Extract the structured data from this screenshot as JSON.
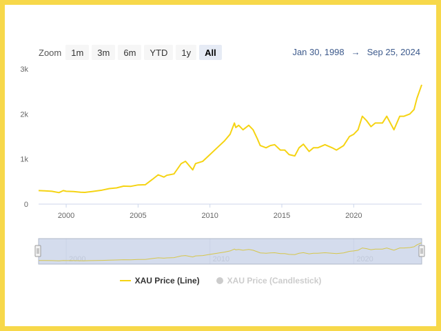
{
  "zoom": {
    "label": "Zoom",
    "buttons": [
      "1m",
      "3m",
      "6m",
      "YTD",
      "1y",
      "All"
    ],
    "active": "All"
  },
  "range": {
    "from": "Jan 30, 1998",
    "arrow": "→",
    "to": "Sep 25, 2024"
  },
  "legend": {
    "line": "XAU Price (Line)",
    "candlestick": "XAU Price (Candlestick)"
  },
  "colors": {
    "line": "#f5d312",
    "frame": "#f7d84a",
    "navigator_mask": "#cdd6ea"
  },
  "chart_data": {
    "type": "line",
    "xlabel": "",
    "ylabel": "",
    "x_range": [
      1998.08,
      2024.73
    ],
    "ylim": [
      0,
      3000
    ],
    "y_ticks": [
      0,
      1000,
      2000,
      3000
    ],
    "y_tick_labels": [
      "0",
      "1k",
      "2k",
      "3k"
    ],
    "x_ticks": [
      2000,
      2005,
      2010,
      2015,
      2020
    ],
    "x_tick_labels": [
      "2000",
      "2005",
      "2010",
      "2015",
      "2020"
    ],
    "navigator_ticks": [
      "2000",
      "2010",
      "2020"
    ],
    "grid": false,
    "legend_position": "bottom",
    "series": [
      {
        "name": "XAU Price (Line)",
        "x": [
          1998.08,
          1998.5,
          1999.0,
          1999.5,
          1999.8,
          2000.0,
          2000.5,
          2001.0,
          2001.3,
          2001.8,
          2002.5,
          2003.0,
          2003.5,
          2004.0,
          2004.5,
          2005.0,
          2005.5,
          2006.0,
          2006.4,
          2006.8,
          2007.0,
          2007.5,
          2008.0,
          2008.3,
          2008.8,
          2009.0,
          2009.5,
          2010.0,
          2010.5,
          2011.0,
          2011.4,
          2011.7,
          2011.8,
          2012.0,
          2012.3,
          2012.7,
          2013.0,
          2013.3,
          2013.5,
          2013.9,
          2014.2,
          2014.5,
          2014.9,
          2015.2,
          2015.5,
          2015.9,
          2016.2,
          2016.5,
          2016.9,
          2017.2,
          2017.5,
          2018.0,
          2018.5,
          2018.8,
          2019.3,
          2019.7,
          2020.0,
          2020.3,
          2020.6,
          2020.9,
          2021.2,
          2021.5,
          2022.0,
          2022.3,
          2022.8,
          2023.2,
          2023.5,
          2023.9,
          2024.2,
          2024.4,
          2024.73
        ],
        "values": [
          300,
          295,
          285,
          255,
          300,
          285,
          280,
          265,
          260,
          280,
          310,
          345,
          360,
          400,
          395,
          425,
          430,
          550,
          650,
          600,
          640,
          670,
          900,
          950,
          760,
          900,
          950,
          1100,
          1250,
          1400,
          1550,
          1800,
          1700,
          1750,
          1650,
          1750,
          1650,
          1450,
          1300,
          1250,
          1300,
          1320,
          1200,
          1200,
          1100,
          1070,
          1250,
          1330,
          1170,
          1250,
          1250,
          1320,
          1250,
          1200,
          1300,
          1500,
          1550,
          1650,
          1950,
          1850,
          1720,
          1800,
          1800,
          1950,
          1650,
          1950,
          1950,
          2000,
          2100,
          2350,
          2650
        ]
      }
    ]
  }
}
